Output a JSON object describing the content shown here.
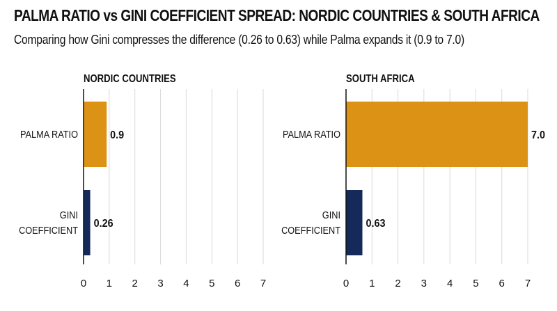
{
  "title": "PALMA RATIO vs GINI COEFFICIENT SPREAD: NORDIC COUNTRIES & SOUTH AFRICA",
  "subtitle": "Comparing how Gini compresses the difference (0.26 to 0.63) while Palma expands it (0.9 to 7.0)",
  "colors": {
    "palma": "#DC9315",
    "gini": "#15295A",
    "grid": "#D9D9D9",
    "axis": "#111111"
  },
  "chart_data": [
    {
      "type": "bar",
      "orientation": "horizontal",
      "title": "NORDIC COUNTRIES",
      "categories": [
        [
          "PALMA RATIO"
        ],
        [
          "GINI",
          "COEFFICIENT"
        ]
      ],
      "values": [
        0.9,
        0.26
      ],
      "value_labels": [
        "0.9",
        "0.26"
      ],
      "xlim": [
        0,
        7
      ],
      "xticks": [
        0,
        1,
        2,
        3,
        4,
        5,
        6,
        7
      ],
      "grid": true
    },
    {
      "type": "bar",
      "orientation": "horizontal",
      "title": "SOUTH AFRICA",
      "categories": [
        [
          "PALMA RATIO"
        ],
        [
          "GINI",
          "COEFFICIENT"
        ]
      ],
      "values": [
        7.0,
        0.63
      ],
      "value_labels": [
        "7.0",
        "0.63"
      ],
      "xlim": [
        0,
        7
      ],
      "xticks": [
        0,
        1,
        2,
        3,
        4,
        5,
        6,
        7
      ],
      "grid": true
    }
  ]
}
